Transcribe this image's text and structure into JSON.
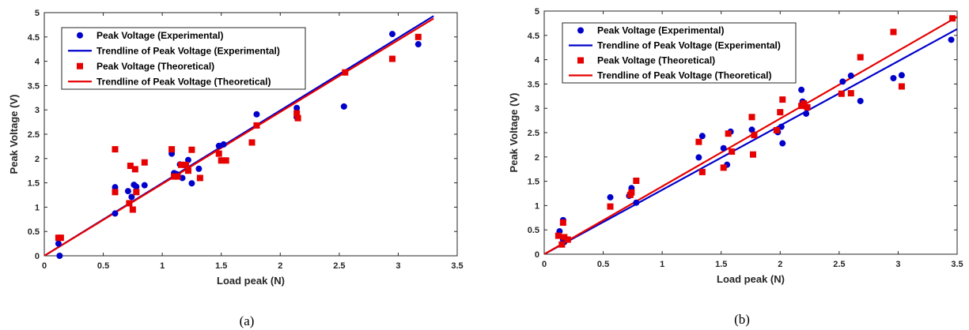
{
  "colors": {
    "experimental": "#0000cc",
    "theoretical": "#e60000",
    "axis": "#262626"
  },
  "chart_data": [
    {
      "type": "scatter",
      "caption": "(a)",
      "xlabel": "Load peak (N)",
      "ylabel": "Peak Voltage (V)",
      "xlim": [
        0,
        3.5
      ],
      "ylim": [
        0,
        5
      ],
      "xticks": [
        "0",
        "0.5",
        "1",
        "1.5",
        "2",
        "2.5",
        "3",
        "3.5"
      ],
      "yticks": [
        "0",
        "0.5",
        "1",
        "1.5",
        "2",
        "2.5",
        "3",
        "3.5",
        "4",
        "4.5",
        "5"
      ],
      "grid": false,
      "legend_position": "top-left",
      "series": [
        {
          "name": "Peak Voltage (Experimental)",
          "kind": "points",
          "marker": "circle",
          "color": "#0000cc",
          "x": [
            0.12,
            0.13,
            0.6,
            0.6,
            0.71,
            0.74,
            0.76,
            0.78,
            0.85,
            1.08,
            1.1,
            1.12,
            1.15,
            1.17,
            1.2,
            1.22,
            1.25,
            1.31,
            1.48,
            1.52,
            1.8,
            2.14,
            2.14,
            2.54,
            2.95,
            3.17
          ],
          "y": [
            0.25,
            0.0,
            1.41,
            0.87,
            1.33,
            1.21,
            1.46,
            1.42,
            1.45,
            2.1,
            1.7,
            1.68,
            1.88,
            1.6,
            1.86,
            1.97,
            1.49,
            1.79,
            2.26,
            2.29,
            2.91,
            3.04,
            2.85,
            3.07,
            4.56,
            4.35
          ]
        },
        {
          "name": "Trendline of Peak Voltage (Experimental)",
          "kind": "line",
          "color": "#0000cc",
          "x": [
            0,
            3.3
          ],
          "y": [
            0,
            4.93
          ]
        },
        {
          "name": "Peak Voltage (Theoretical)",
          "kind": "points",
          "marker": "square",
          "color": "#e60000",
          "x": [
            0.12,
            0.14,
            0.6,
            0.6,
            0.72,
            0.73,
            0.75,
            0.77,
            0.78,
            0.85,
            1.08,
            1.1,
            1.13,
            1.16,
            1.2,
            1.22,
            1.25,
            1.32,
            1.48,
            1.5,
            1.54,
            1.76,
            1.8,
            2.14,
            2.15,
            2.55,
            2.95,
            3.17
          ],
          "y": [
            0.37,
            0.37,
            2.19,
            1.31,
            1.08,
            1.85,
            0.95,
            1.78,
            1.31,
            1.92,
            2.19,
            1.63,
            1.63,
            1.87,
            1.87,
            1.75,
            2.18,
            1.6,
            2.1,
            1.96,
            1.96,
            2.33,
            2.68,
            2.93,
            2.83,
            3.77,
            4.05,
            4.5
          ]
        },
        {
          "name": "Trendline of Peak Voltage (Theoretical)",
          "kind": "line",
          "color": "#e60000",
          "x": [
            0,
            3.3
          ],
          "y": [
            0,
            4.88
          ]
        }
      ]
    },
    {
      "type": "scatter",
      "caption": "(b)",
      "xlabel": "Load peak (N)",
      "ylabel": "Peak Voltage (V)",
      "xlim": [
        0,
        3.5
      ],
      "ylim": [
        0,
        5
      ],
      "xticks": [
        "0",
        "0.5",
        "1",
        "1.5",
        "2",
        "2.5",
        "3",
        "3.5"
      ],
      "yticks": [
        "0",
        "0.5",
        "1",
        "1.5",
        "2",
        "2.5",
        "3",
        "3.5",
        "4",
        "4.5",
        "5"
      ],
      "grid": false,
      "legend_position": "top-left",
      "series": [
        {
          "name": "Peak Voltage (Experimental)",
          "kind": "points",
          "marker": "circle",
          "color": "#0000cc",
          "x": [
            0.13,
            0.16,
            0.16,
            0.17,
            0.56,
            0.72,
            0.74,
            0.78,
            1.31,
            1.34,
            1.52,
            1.55,
            1.58,
            1.76,
            1.78,
            1.98,
            2.01,
            2.02,
            2.18,
            2.19,
            2.22,
            2.53,
            2.6,
            2.68,
            2.96,
            3.03,
            3.45
          ],
          "y": [
            0.47,
            0.3,
            0.7,
            0.25,
            1.17,
            1.2,
            1.36,
            1.06,
            1.99,
            2.43,
            2.18,
            1.84,
            2.52,
            2.56,
            2.46,
            2.51,
            2.62,
            2.28,
            3.38,
            3.14,
            2.89,
            3.55,
            3.67,
            3.15,
            3.62,
            3.68,
            4.41
          ]
        },
        {
          "name": "Trendline of Peak Voltage (Experimental)",
          "kind": "line",
          "color": "#0000cc",
          "x": [
            0,
            3.5
          ],
          "y": [
            0,
            4.63
          ]
        },
        {
          "name": "Peak Voltage (Theoretical)",
          "kind": "points",
          "marker": "square",
          "color": "#e60000",
          "x": [
            0.12,
            0.15,
            0.16,
            0.17,
            0.2,
            0.56,
            0.73,
            0.74,
            0.78,
            1.31,
            1.34,
            1.52,
            1.56,
            1.59,
            1.76,
            1.77,
            1.78,
            1.97,
            2.0,
            2.02,
            2.18,
            2.2,
            2.23,
            2.52,
            2.6,
            2.68,
            2.96,
            3.03,
            3.46
          ],
          "y": [
            0.38,
            0.2,
            0.65,
            0.35,
            0.3,
            0.98,
            1.22,
            1.27,
            1.51,
            2.31,
            1.69,
            1.78,
            2.48,
            2.11,
            2.82,
            2.05,
            2.45,
            2.55,
            2.92,
            3.18,
            3.05,
            3.1,
            3.02,
            3.3,
            3.31,
            4.05,
            4.57,
            3.45,
            4.85
          ]
        },
        {
          "name": "Trendline of Peak Voltage (Theoretical)",
          "kind": "line",
          "color": "#e60000",
          "x": [
            0,
            3.5
          ],
          "y": [
            0,
            4.88
          ]
        }
      ]
    }
  ]
}
